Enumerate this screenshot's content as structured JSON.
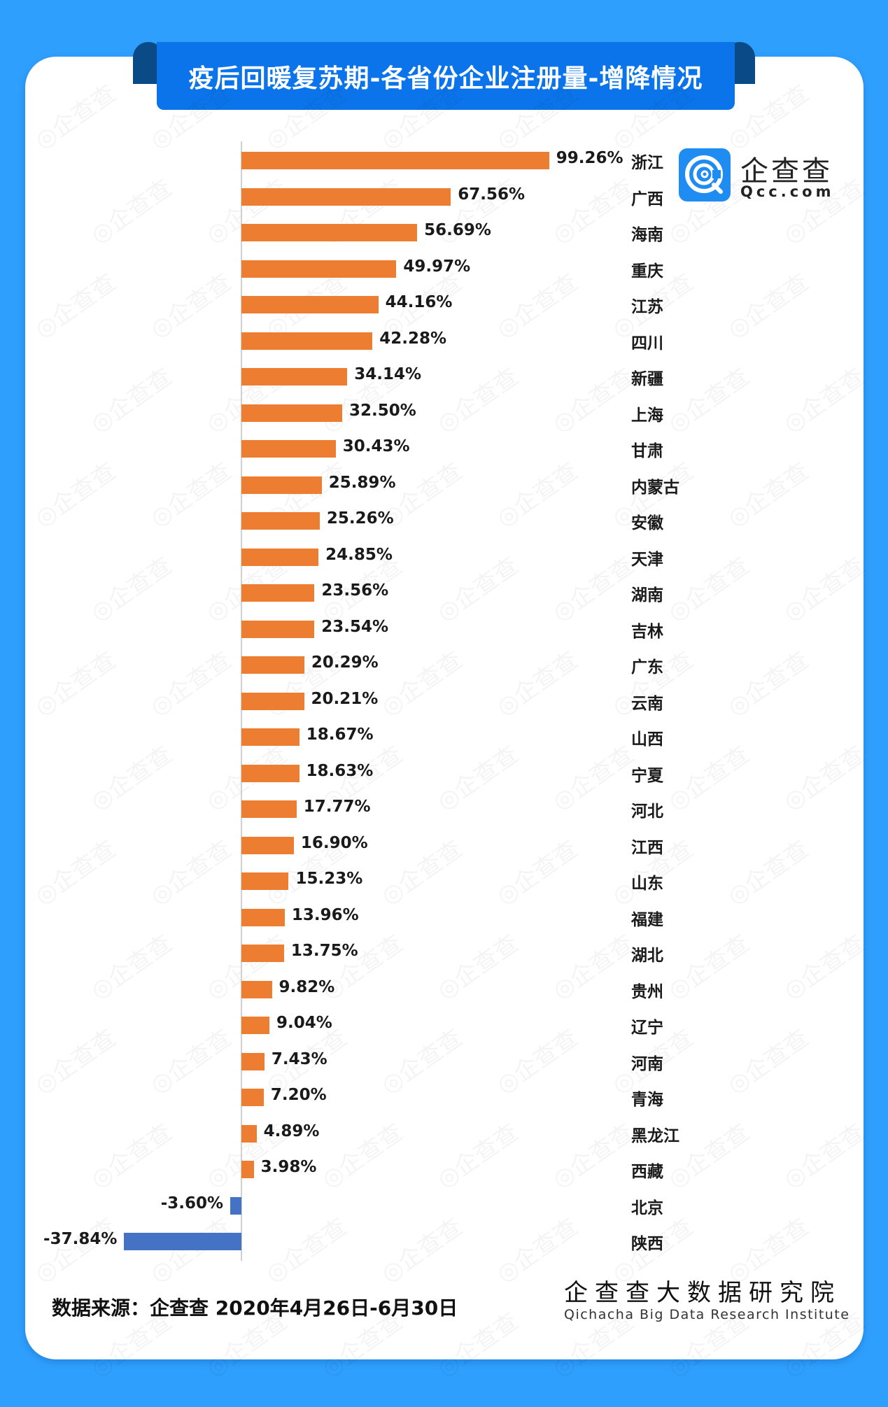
{
  "header": {
    "title": "疫后回暖复苏期-各省份企业注册量-增降情况"
  },
  "logo": {
    "cn": "企查查",
    "en": "Qcc.com",
    "icon": "qcc-logo-icon"
  },
  "colors": {
    "background": "#2f9ffd",
    "banner": "#0b74ea",
    "positive": "#ed7d31",
    "negative": "#4472c4"
  },
  "footer": {
    "source": "数据来源：企查查   2020年4月26日-6月30日",
    "institute_cn": "企查查大数据研究院",
    "institute_en": "Qichacha Big Data Research Institute"
  },
  "watermark": "企查查",
  "chart_data": {
    "type": "bar",
    "orientation": "horizontal",
    "title": "疫后回暖复苏期-各省份企业注册量-增降情况",
    "xlabel": "",
    "ylabel": "",
    "grid": false,
    "legend": null,
    "categories": [
      "浙江",
      "广西",
      "海南",
      "重庆",
      "江苏",
      "四川",
      "新疆",
      "上海",
      "甘肃",
      "内蒙古",
      "安徽",
      "天津",
      "湖南",
      "吉林",
      "广东",
      "云南",
      "山西",
      "宁夏",
      "河北",
      "江西",
      "山东",
      "福建",
      "湖北",
      "贵州",
      "辽宁",
      "河南",
      "青海",
      "黑龙江",
      "西藏",
      "北京",
      "陕西"
    ],
    "values": [
      99.26,
      67.56,
      56.69,
      49.97,
      44.16,
      42.28,
      34.14,
      32.5,
      30.43,
      25.89,
      25.26,
      24.85,
      23.56,
      23.54,
      20.29,
      20.21,
      18.67,
      18.63,
      17.77,
      16.9,
      15.23,
      13.96,
      13.75,
      9.82,
      9.04,
      7.43,
      7.2,
      4.89,
      3.98,
      -3.6,
      -37.84
    ],
    "labels": [
      "99.26%",
      "67.56%",
      "56.69%",
      "49.97%",
      "44.16%",
      "42.28%",
      "34.14%",
      "32.50%",
      "30.43%",
      "25.89%",
      "25.26%",
      "24.85%",
      "23.56%",
      "23.54%",
      "20.29%",
      "20.21%",
      "18.67%",
      "18.63%",
      "17.77%",
      "16.90%",
      "15.23%",
      "13.96%",
      "13.75%",
      "9.82%",
      "9.04%",
      "7.43%",
      "7.20%",
      "4.89%",
      "3.98%",
      "-3.60%",
      "-37.84%"
    ],
    "unit": "%",
    "xlim": [
      -40,
      100
    ]
  }
}
